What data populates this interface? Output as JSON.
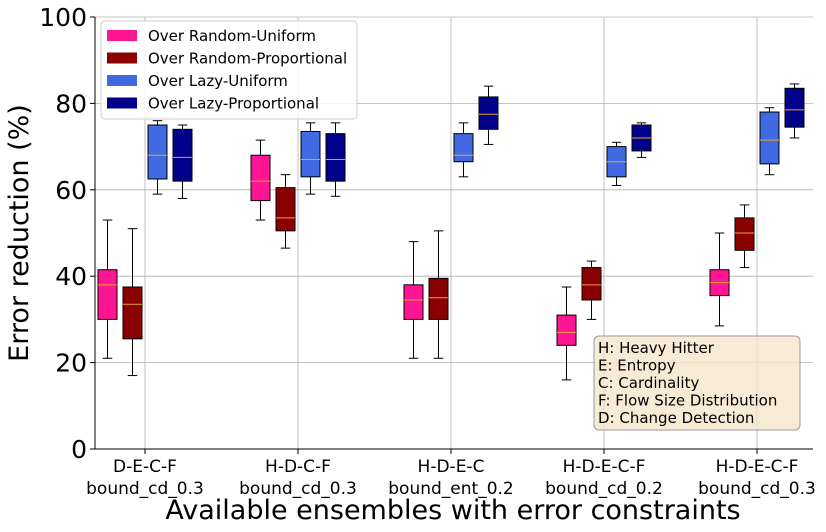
{
  "chart_data": {
    "type": "box",
    "title": "",
    "xlabel": "Available ensembles with error constraints",
    "ylabel": "Error reduction (%)",
    "ylim": [
      0,
      100
    ],
    "yticks": [
      0,
      20,
      40,
      60,
      80,
      100
    ],
    "grid": true,
    "legend_position": "top-left",
    "categories": [
      [
        "D-E-C-F",
        "bound_cd_0.3"
      ],
      [
        "H-D-C-F",
        "bound_cd_0.3"
      ],
      [
        "H-D-E-C",
        "bound_ent_0.2"
      ],
      [
        "H-D-E-C-F",
        "bound_cd_0.2"
      ],
      [
        "H-D-E-C-F",
        "bound_cd_0.3"
      ]
    ],
    "series": [
      {
        "name": "Over Random-Uniform",
        "color": "#ff1493",
        "boxes": [
          {
            "whisker_low": 21,
            "q1": 30,
            "median": 38,
            "q3": 41.5,
            "whisker_high": 53
          },
          {
            "whisker_low": 53,
            "q1": 57.5,
            "median": 62,
            "q3": 68,
            "whisker_high": 71.5
          },
          {
            "whisker_low": 21,
            "q1": 30,
            "median": 34.5,
            "q3": 38,
            "whisker_high": 48
          },
          {
            "whisker_low": 16,
            "q1": 24,
            "median": 27,
            "q3": 31,
            "whisker_high": 37.5
          },
          {
            "whisker_low": 28.5,
            "q1": 35.5,
            "median": 38.5,
            "q3": 41.5,
            "whisker_high": 50
          }
        ]
      },
      {
        "name": "Over Random-Proportional",
        "color": "#8b0000",
        "boxes": [
          {
            "whisker_low": 17,
            "q1": 25.5,
            "median": 33.5,
            "q3": 37.5,
            "whisker_high": 51
          },
          {
            "whisker_low": 46.5,
            "q1": 50.5,
            "median": 53.5,
            "q3": 60.5,
            "whisker_high": 63.5
          },
          {
            "whisker_low": 21,
            "q1": 30,
            "median": 35,
            "q3": 39.5,
            "whisker_high": 50.5
          },
          {
            "whisker_low": 30,
            "q1": 34.5,
            "median": 38,
            "q3": 42,
            "whisker_high": 43.5
          },
          {
            "whisker_low": 42,
            "q1": 46,
            "median": 50,
            "q3": 53.5,
            "whisker_high": 56.5
          }
        ]
      },
      {
        "name": "Over Lazy-Uniform",
        "color": "#4169e1",
        "boxes": [
          {
            "whisker_low": 59,
            "q1": 62.5,
            "median": 68,
            "q3": 75,
            "whisker_high": 76
          },
          {
            "whisker_low": 59,
            "q1": 63,
            "median": 67,
            "q3": 73.5,
            "whisker_high": 75.5
          },
          {
            "whisker_low": 63,
            "q1": 66.5,
            "median": 68,
            "q3": 73,
            "whisker_high": 75.5
          },
          {
            "whisker_low": 61,
            "q1": 63,
            "median": 66.5,
            "q3": 70,
            "whisker_high": 71
          },
          {
            "whisker_low": 63.5,
            "q1": 66,
            "median": 71.5,
            "q3": 78,
            "whisker_high": 79
          }
        ]
      },
      {
        "name": "Over Lazy-Proportional",
        "color": "#00008b",
        "boxes": [
          {
            "whisker_low": 58,
            "q1": 62,
            "median": 67.5,
            "q3": 74,
            "whisker_high": 75
          },
          {
            "whisker_low": 58.5,
            "q1": 62,
            "median": 67,
            "q3": 73,
            "whisker_high": 75.5
          },
          {
            "whisker_low": 70.5,
            "q1": 74,
            "median": 77.5,
            "q3": 81.5,
            "whisker_high": 84
          },
          {
            "whisker_low": 67.5,
            "q1": 69,
            "median": 72,
            "q3": 75,
            "whisker_high": 75.5
          },
          {
            "whisker_low": 72,
            "q1": 74.5,
            "median": 78.5,
            "q3": 83.5,
            "whisker_high": 84.5
          }
        ]
      }
    ],
    "median_color": "#e8a33a",
    "annotation": {
      "lines": [
        "H: Heavy Hitter",
        "E: Entropy",
        "C: Cardinality",
        "F: Flow Size Distribution",
        "D: Change Detection"
      ],
      "background": "#f5e6cc"
    }
  }
}
